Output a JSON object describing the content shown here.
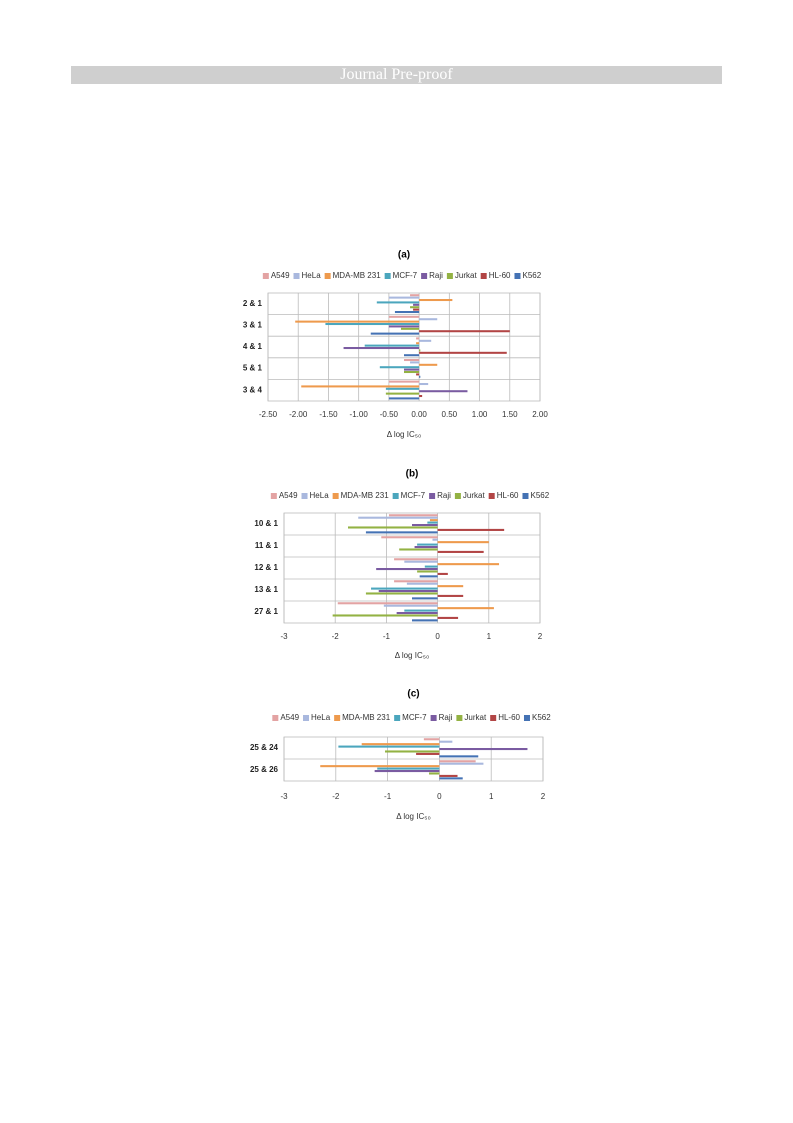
{
  "header": {
    "title": "Journal Pre-proof"
  },
  "chart_data": [
    {
      "type": "barh",
      "title": "(a)",
      "xlabel": "Δ log IC₅₀",
      "categories": [
        "2 & 1",
        "3 & 1",
        "4 & 1",
        "5 & 1",
        "3 & 4"
      ],
      "xlim": [
        -2.5,
        2.0
      ],
      "xticks": [
        {
          "value": -2.5,
          "label": "-2.50"
        },
        {
          "value": -2.0,
          "label": "-2.00"
        },
        {
          "value": -1.5,
          "label": "-1.50"
        },
        {
          "value": -1.0,
          "label": "-1.00"
        },
        {
          "value": -0.5,
          "label": "-0.50"
        },
        {
          "value": 0,
          "label": "0.00"
        },
        {
          "value": 0.5,
          "label": "0.50"
        },
        {
          "value": 1.0,
          "label": "1.00"
        },
        {
          "value": 1.5,
          "label": "1.50"
        },
        {
          "value": 2.0,
          "label": "2.00"
        }
      ],
      "grid": true,
      "series": [
        {
          "name": "A549",
          "color": "#e3a3a3",
          "values": [
            -0.15,
            -0.5,
            -0.05,
            -0.25,
            -0.5
          ]
        },
        {
          "name": "HeLa",
          "color": "#a9b8de",
          "values": [
            -0.5,
            0.3,
            0.2,
            -0.15,
            0.15
          ]
        },
        {
          "name": "MDA-MB 231",
          "color": "#ee9a4d",
          "values": [
            0.55,
            -2.05,
            -0.05,
            0.3,
            -1.95
          ]
        },
        {
          "name": "MCF-7",
          "color": "#4ba6bd",
          "values": [
            -0.7,
            -1.55,
            -0.9,
            -0.65,
            -0.55
          ]
        },
        {
          "name": "Raji",
          "color": "#7a5ba1",
          "values": [
            -0.1,
            -0.5,
            -1.25,
            -0.25,
            0.8
          ]
        },
        {
          "name": "Jurkat",
          "color": "#93b243",
          "values": [
            -0.15,
            -0.3,
            0.02,
            -0.25,
            -0.55
          ]
        },
        {
          "name": "HL-60",
          "color": "#b24545",
          "values": [
            -0.1,
            1.5,
            1.45,
            -0.05,
            0.05
          ]
        },
        {
          "name": "K562",
          "color": "#4472b4",
          "values": [
            -0.4,
            -0.8,
            -0.25,
            0.02,
            -0.5
          ]
        }
      ]
    },
    {
      "type": "barh",
      "title": "(b)",
      "xlabel": "Δ log IC₅₀",
      "categories": [
        "10 & 1",
        "11 & 1",
        "12 & 1",
        "13 & 1",
        "27 & 1"
      ],
      "xlim": [
        -3,
        2
      ],
      "xticks": [
        -3,
        -2,
        -1,
        0,
        1,
        2
      ],
      "grid": true,
      "series": [
        {
          "name": "A549",
          "color": "#e3a3a3",
          "values": [
            -0.95,
            -1.1,
            -0.85,
            -0.85,
            -1.95
          ]
        },
        {
          "name": "HeLa",
          "color": "#a9b8de",
          "values": [
            -1.55,
            -0.1,
            -0.65,
            -0.6,
            -1.05
          ]
        },
        {
          "name": "MDA-MB 231",
          "color": "#ee9a4d",
          "values": [
            -0.15,
            1.0,
            1.2,
            0.5,
            1.1
          ]
        },
        {
          "name": "MCF-7",
          "color": "#4ba6bd",
          "values": [
            -0.2,
            -0.4,
            -0.25,
            -1.3,
            -0.65
          ]
        },
        {
          "name": "Raji",
          "color": "#7a5ba1",
          "values": [
            -0.5,
            -0.45,
            -1.2,
            -1.15,
            -0.8
          ]
        },
        {
          "name": "Jurkat",
          "color": "#93b243",
          "values": [
            -1.75,
            -0.75,
            -0.4,
            -1.4,
            -2.05
          ]
        },
        {
          "name": "HL-60",
          "color": "#b24545",
          "values": [
            1.3,
            0.9,
            0.2,
            0.5,
            0.4
          ]
        },
        {
          "name": "K562",
          "color": "#4472b4",
          "values": [
            -1.4,
            0,
            -0.35,
            -0.5,
            -0.5
          ]
        }
      ]
    },
    {
      "type": "barh",
      "title": "(c)",
      "xlabel": "Δ log IC₅₀",
      "categories": [
        "25 & 24",
        "25 & 26"
      ],
      "xlim": [
        -3,
        2
      ],
      "xticks": [
        -3,
        -2,
        -1,
        0,
        1,
        2
      ],
      "grid": true,
      "series": [
        {
          "name": "A549",
          "color": "#e3a3a3",
          "values": [
            -0.3,
            0.7
          ]
        },
        {
          "name": "HeLa",
          "color": "#a9b8de",
          "values": [
            0.25,
            0.85
          ]
        },
        {
          "name": "MDA-MB 231",
          "color": "#ee9a4d",
          "values": [
            -1.5,
            -2.3
          ]
        },
        {
          "name": "MCF-7",
          "color": "#4ba6bd",
          "values": [
            -1.95,
            -1.2
          ]
        },
        {
          "name": "Raji",
          "color": "#7a5ba1",
          "values": [
            1.7,
            -1.25
          ]
        },
        {
          "name": "Jurkat",
          "color": "#93b243",
          "values": [
            -1.05,
            -0.2
          ]
        },
        {
          "name": "HL-60",
          "color": "#b24545",
          "values": [
            -0.45,
            0.35
          ]
        },
        {
          "name": "K562",
          "color": "#4472b4",
          "values": [
            0.75,
            0.45
          ]
        }
      ]
    }
  ]
}
